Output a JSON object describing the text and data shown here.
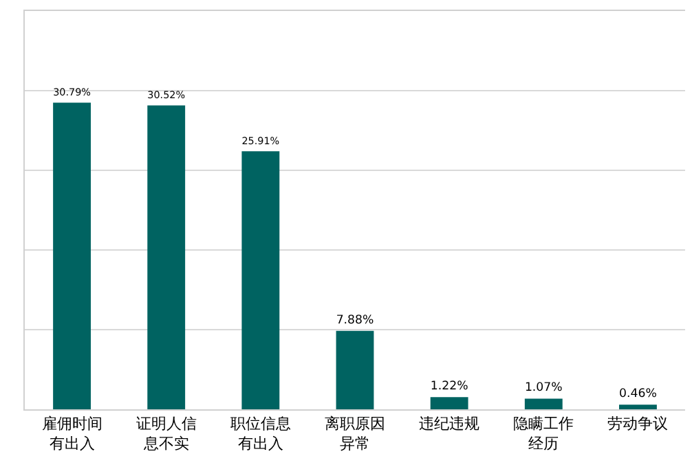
{
  "chart_data": {
    "type": "bar",
    "categories": [
      "雇佣时间有出入",
      "证明人信息不实",
      "职位信息有出入",
      "离职原因异常",
      "违纪违规",
      "隐瞒工作经历",
      "劳动争议"
    ],
    "values": [
      30.79,
      30.52,
      25.91,
      7.88,
      1.22,
      1.07,
      0.46
    ],
    "value_labels": [
      "30.79%",
      "30.52%",
      "25.91%",
      "7.88%",
      "1.22%",
      "1.07%",
      "0.46%"
    ],
    "color": "#006361",
    "ylim": [
      0,
      40
    ],
    "yticks": [
      {
        "value": 0,
        "label": null
      },
      {
        "value": 8,
        "label": null
      },
      {
        "value": 16,
        "label": null
      },
      {
        "value": 24,
        "label": null
      },
      {
        "value": 32,
        "label": null
      },
      {
        "value": 40,
        "label": null
      }
    ],
    "grid": "y",
    "legend": false
  }
}
